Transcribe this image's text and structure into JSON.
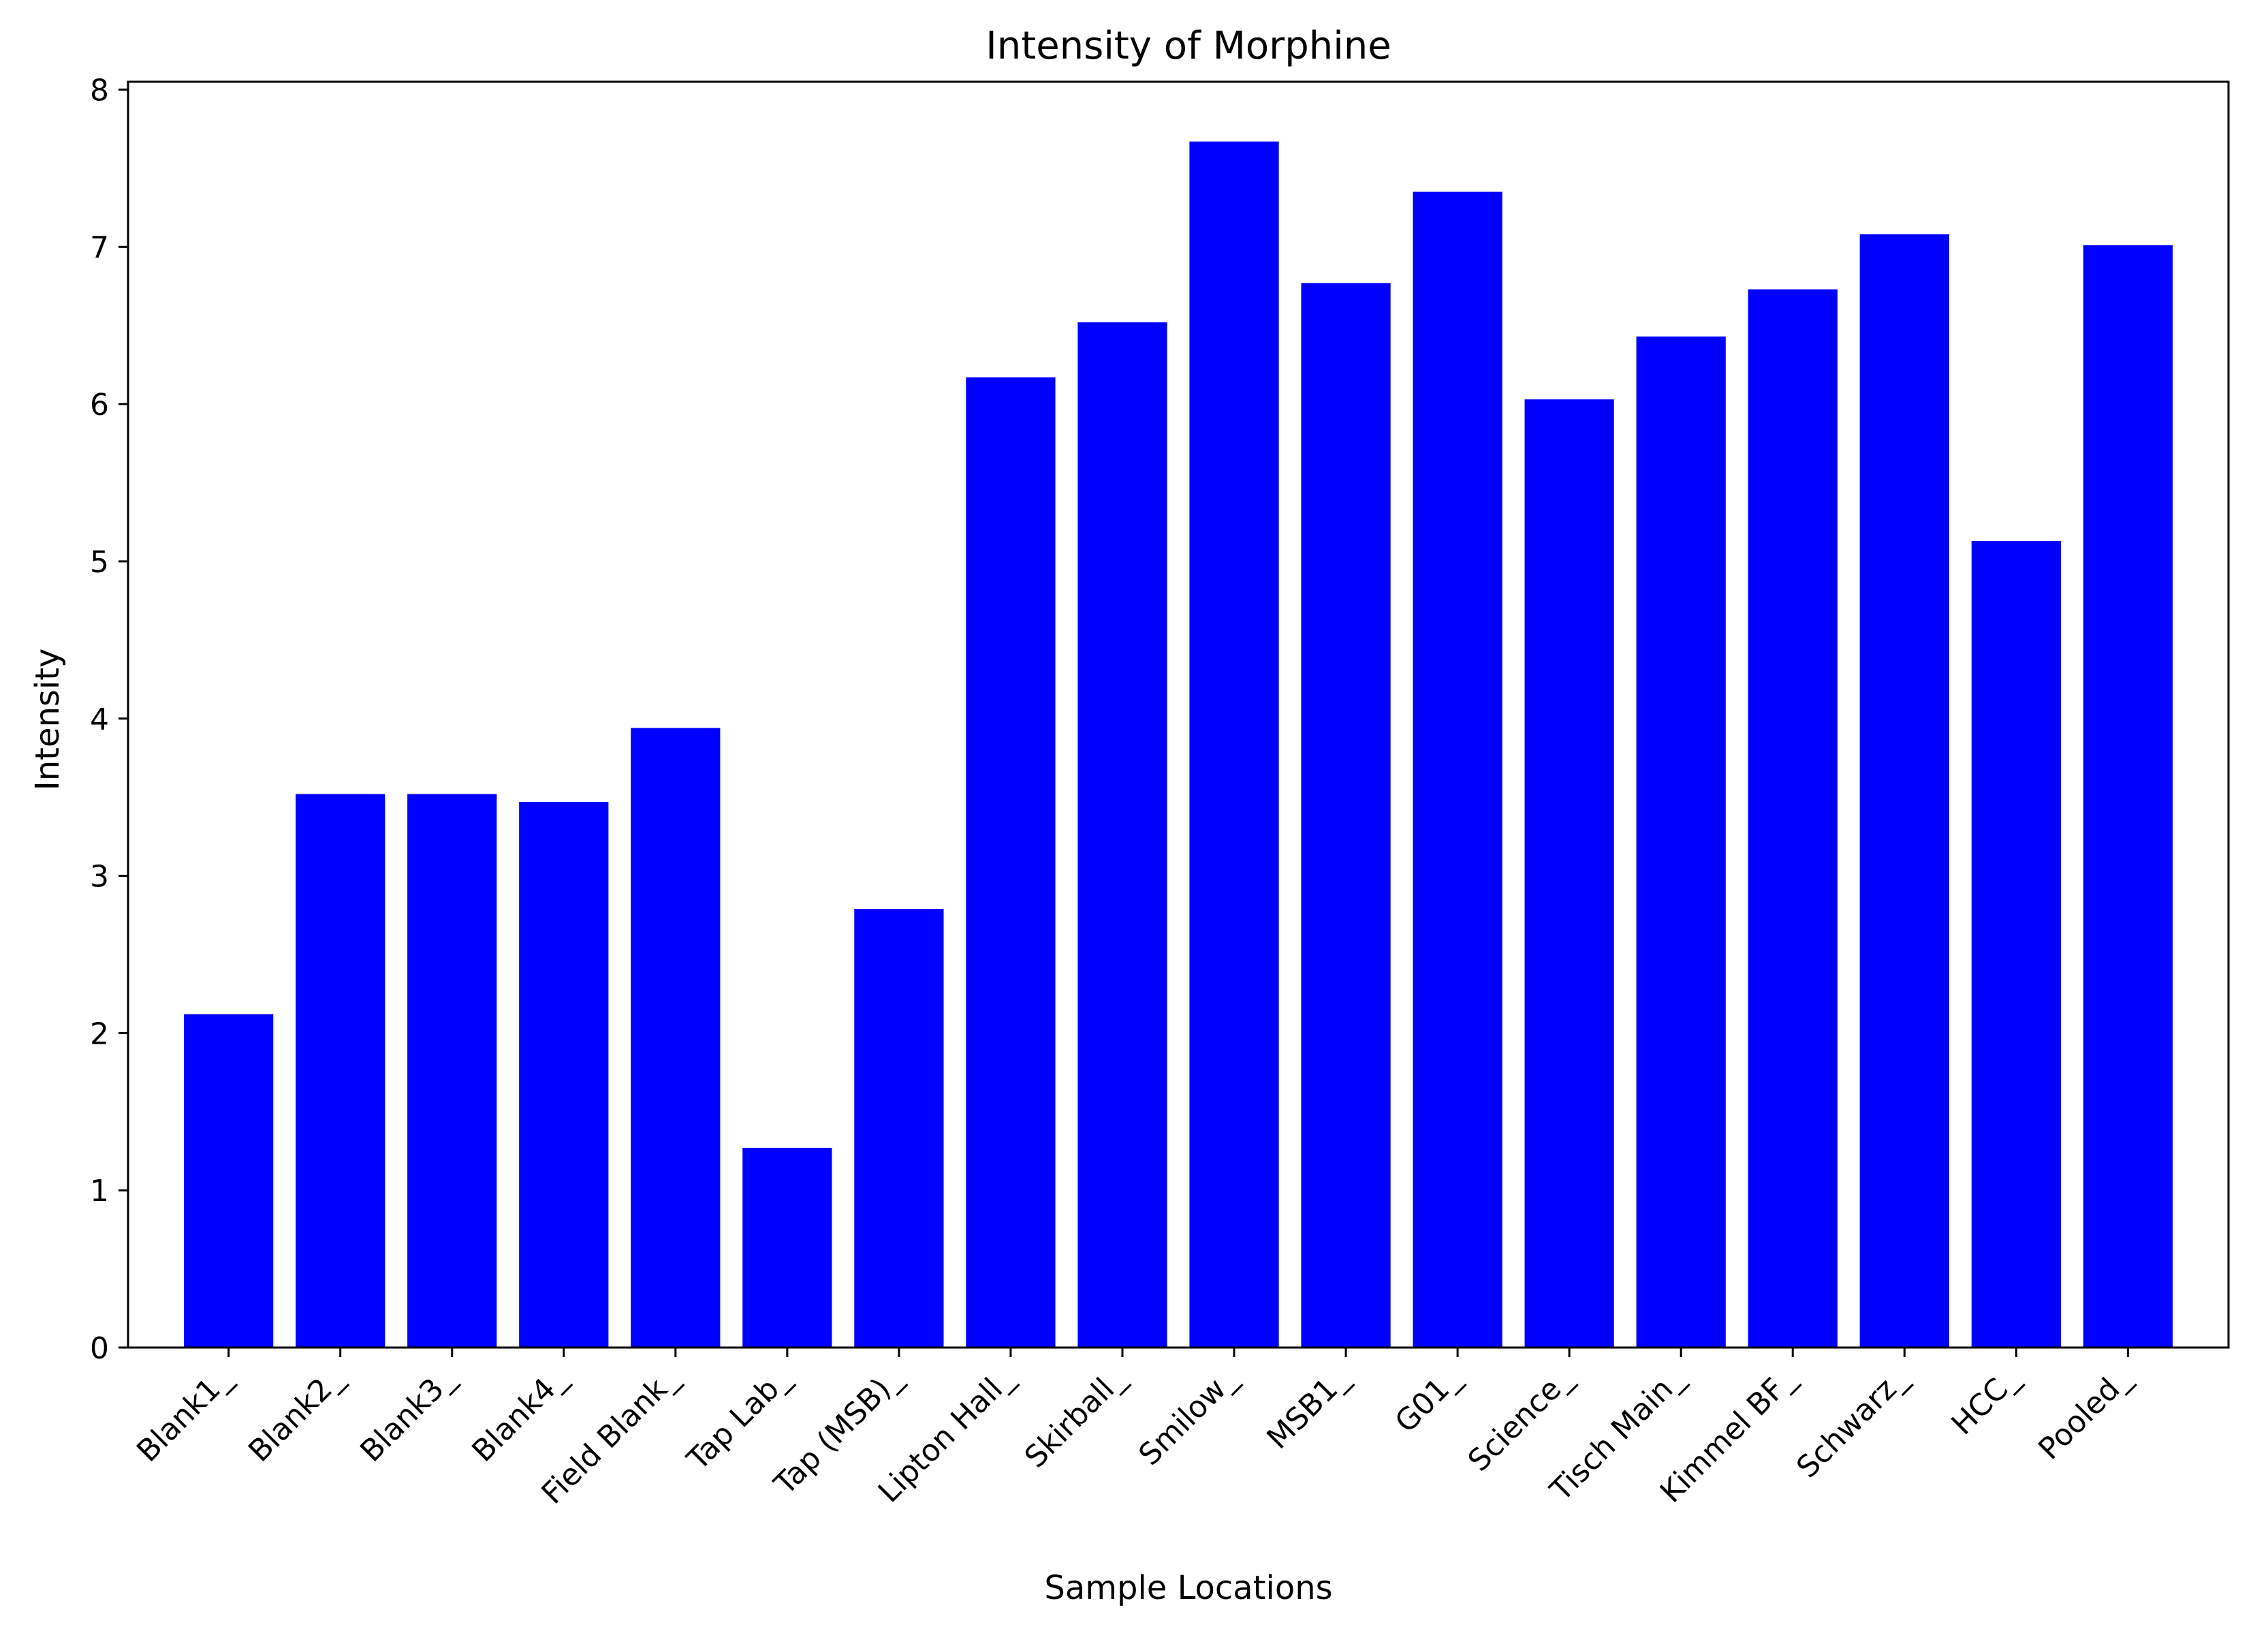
{
  "chart_data": {
    "type": "bar",
    "title": "Intensity of Morphine",
    "xlabel": "Sample Locations",
    "ylabel": "Intensity",
    "ylim": [
      0,
      8.05
    ],
    "yticks": [
      0,
      1,
      2,
      3,
      4,
      5,
      6,
      7,
      8
    ],
    "grid": false,
    "bar_color": "#0000ff",
    "categories": [
      "Blank1_",
      "Blank2_",
      "Blank3_",
      "Blank4_",
      "Field Blank_",
      "Tap Lab_",
      "Tap (MSB)_",
      "Lipton Hall_",
      "Skirball_",
      "Smilow_",
      "MSB1_",
      "G01_",
      "Science_",
      "Tisch Main_",
      "Kimmel BF_",
      "Schwarz_",
      "HCC_",
      "Pooled_"
    ],
    "values": [
      2.12,
      3.52,
      3.52,
      3.47,
      3.94,
      1.27,
      2.79,
      6.17,
      6.52,
      7.67,
      6.77,
      7.35,
      6.03,
      6.43,
      6.73,
      7.08,
      5.13,
      7.01
    ]
  }
}
